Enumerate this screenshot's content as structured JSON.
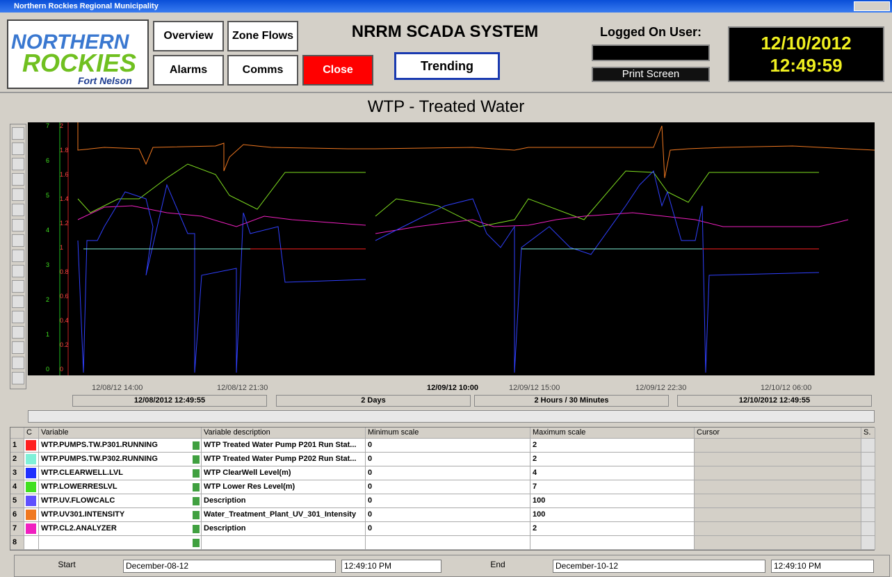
{
  "window": {
    "title": "Northern Rockies Regional Municipality"
  },
  "header": {
    "logo": {
      "line1": "NORTHERN",
      "line2": "ROCKIES",
      "line3": "Fort Nelson"
    },
    "nav": [
      "Overview",
      "Zone Flows",
      "Alarms",
      "Comms"
    ],
    "close": "Close",
    "system_title": "NRRM SCADA SYSTEM",
    "trending": "Trending",
    "logged_on_label": "Logged On User:",
    "print_screen": "Print Screen",
    "date": "12/10/2012",
    "time": "12:49:59"
  },
  "trend": {
    "title": "WTP - Treated Water",
    "green_axis": [
      "7",
      "6",
      "5",
      "4",
      "3",
      "2",
      "1",
      "0"
    ],
    "red_axis": [
      "2",
      "1.8",
      "1.6",
      "1.4",
      "1.2",
      "1",
      "0.8",
      "0.6",
      "0.4",
      "0.2",
      "0"
    ],
    "time_labels": [
      "12/08/12 14:00",
      "12/08/12 21:30",
      "12/09/12 10:00",
      "12/09/12 15:00",
      "12/09/12 22:30",
      "12/10/12 06:00"
    ],
    "status": [
      "12/08/2012 12:49:55",
      "2 Days",
      "2 Hours / 30 Minutes",
      "12/10/2012 12:49:55"
    ]
  },
  "table": {
    "columns": [
      "C",
      "Variable",
      "Variable description",
      "Minimum scale",
      "Maximum scale",
      "Cursor",
      "S."
    ],
    "rows": [
      {
        "n": "1",
        "color": "#ff2020",
        "variable": "WTP.PUMPS.TW.P301.RUNNING",
        "description": "WTP Treated Water Pump P201 Run Stat...",
        "min": "0",
        "max": "2"
      },
      {
        "n": "2",
        "color": "#80f0d8",
        "variable": "WTP.PUMPS.TW.P302.RUNNING",
        "description": "WTP Treated Water Pump P202 Run Stat...",
        "min": "0",
        "max": "2"
      },
      {
        "n": "3",
        "color": "#2030ff",
        "variable": "WTP.CLEARWELL.LVL",
        "description": "WTP ClearWell Level(m)",
        "min": "0",
        "max": "4"
      },
      {
        "n": "4",
        "color": "#40e020",
        "variable": "WTP.LOWERRESLVL",
        "description": "WTP Lower Res Level(m)",
        "min": "0",
        "max": "7"
      },
      {
        "n": "5",
        "color": "#6050ff",
        "variable": "WTP.UV.FLOWCALC",
        "description": "Description",
        "min": "0",
        "max": "100"
      },
      {
        "n": "6",
        "color": "#f07820",
        "variable": "WTP.UV301.INTENSITY",
        "description": "Water_Treatment_Plant_UV_301_Intensity",
        "min": "0",
        "max": "100"
      },
      {
        "n": "7",
        "color": "#f020c0",
        "variable": "WTP.CL2.ANALYZER",
        "description": "Description",
        "min": "0",
        "max": "2"
      },
      {
        "n": "8",
        "color": "#ffffff",
        "variable": null,
        "description": null,
        "min": null,
        "max": null
      }
    ]
  },
  "footer": {
    "start_label": "Start",
    "start_date": "December-08-12",
    "start_time": "12:49:10 PM",
    "end_label": "End",
    "end_date": "December-10-12",
    "end_time": "12:49:10 PM"
  }
}
